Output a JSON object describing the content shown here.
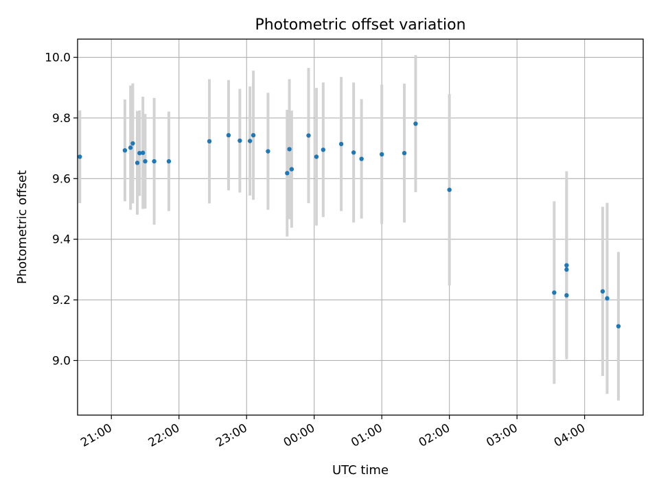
{
  "chart_data": {
    "type": "scatter",
    "title": "Photometric offset variation",
    "xlabel": "UTC time",
    "ylabel": "Photometric offset",
    "x_unit": "UTC clock time (start 20:00, hours past midnight continue as 24+)",
    "xlim": [
      "20:30",
      "04:52"
    ],
    "ylim": [
      8.82,
      10.06
    ],
    "x_ticks": [
      "21:00",
      "22:00",
      "23:00",
      "00:00",
      "01:00",
      "02:00",
      "03:00",
      "04:00"
    ],
    "y_ticks": [
      "9.0",
      "9.2",
      "9.4",
      "9.6",
      "9.8",
      "10.0"
    ],
    "grid": true,
    "colors": {
      "point": "#1f77b4",
      "errorbar": "#d3d3d3",
      "grid": "#b0b0b0"
    },
    "points": [
      {
        "t": "20:32",
        "y": 9.672,
        "err": 0.153
      },
      {
        "t": "21:12",
        "y": 9.693,
        "err": 0.168
      },
      {
        "t": "21:17",
        "y": 9.702,
        "err": 0.205
      },
      {
        "t": "21:19",
        "y": 9.716,
        "err": 0.198
      },
      {
        "t": "21:23",
        "y": 9.652,
        "err": 0.171
      },
      {
        "t": "21:25",
        "y": 9.684,
        "err": 0.141
      },
      {
        "t": "21:28",
        "y": 9.685,
        "err": 0.185
      },
      {
        "t": "21:30",
        "y": 9.657,
        "err": 0.156
      },
      {
        "t": "21:38",
        "y": 9.657,
        "err": 0.209
      },
      {
        "t": "21:51",
        "y": 9.657,
        "err": 0.164
      },
      {
        "t": "22:27",
        "y": 9.723,
        "err": 0.205
      },
      {
        "t": "22:44",
        "y": 9.743,
        "err": 0.182
      },
      {
        "t": "22:54",
        "y": 9.725,
        "err": 0.171
      },
      {
        "t": "23:03",
        "y": 9.724,
        "err": 0.18
      },
      {
        "t": "23:06",
        "y": 9.743,
        "err": 0.213
      },
      {
        "t": "23:19",
        "y": 9.69,
        "err": 0.193
      },
      {
        "t": "23:36",
        "y": 9.618,
        "err": 0.209
      },
      {
        "t": "23:38",
        "y": 9.697,
        "err": 0.231
      },
      {
        "t": "23:40",
        "y": 9.631,
        "err": 0.193
      },
      {
        "t": "23:55",
        "y": 9.742,
        "err": 0.223
      },
      {
        "t": "24:02",
        "y": 9.672,
        "err": 0.227
      },
      {
        "t": "24:08",
        "y": 9.695,
        "err": 0.222
      },
      {
        "t": "24:24",
        "y": 9.714,
        "err": 0.221
      },
      {
        "t": "24:35",
        "y": 9.686,
        "err": 0.231
      },
      {
        "t": "24:42",
        "y": 9.665,
        "err": 0.197
      },
      {
        "t": "25:00",
        "y": 9.68,
        "err": 0.23
      },
      {
        "t": "25:20",
        "y": 9.684,
        "err": 0.229
      },
      {
        "t": "25:30",
        "y": 9.781,
        "err": 0.226
      },
      {
        "t": "26:00",
        "y": 9.563,
        "err": 0.316
      },
      {
        "t": "27:33",
        "y": 9.224,
        "err": 0.301
      },
      {
        "t": "27:44",
        "y": 9.314,
        "err": 0.31
      },
      {
        "t": "27:44",
        "y": 9.3,
        "err": 0.284
      },
      {
        "t": "27:44",
        "y": 9.215,
        "err": 0.203
      },
      {
        "t": "28:16",
        "y": 9.228,
        "err": 0.279
      },
      {
        "t": "28:20",
        "y": 9.205,
        "err": 0.315
      },
      {
        "t": "28:30",
        "y": 9.113,
        "err": 0.245
      }
    ]
  }
}
